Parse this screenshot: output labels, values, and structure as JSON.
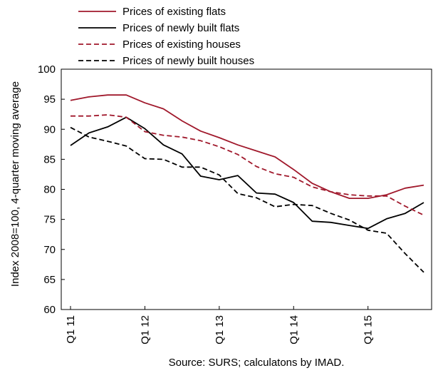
{
  "chart_data": {
    "type": "line",
    "title": "",
    "xlabel": "",
    "ylabel": "Index 2008=100, 4-quarter moving average",
    "ylim": [
      60,
      100
    ],
    "yticks": [
      60,
      65,
      70,
      75,
      80,
      85,
      90,
      95,
      100
    ],
    "grid": false,
    "legend_position": "top",
    "x_labels": [
      {
        "label": "Q1 11",
        "index": 0
      },
      {
        "label": "Q1 12",
        "index": 4
      },
      {
        "label": "Q1 13",
        "index": 8
      },
      {
        "label": "Q1 14",
        "index": 12
      },
      {
        "label": "Q1 15",
        "index": 16
      }
    ],
    "categories": [
      "Q1 11",
      "Q2 11",
      "Q3 11",
      "Q4 11",
      "Q1 12",
      "Q2 12",
      "Q3 12",
      "Q4 12",
      "Q1 13",
      "Q2 13",
      "Q3 13",
      "Q4 13",
      "Q1 14",
      "Q2 14",
      "Q3 14",
      "Q4 14",
      "Q1 15",
      "Q2 15",
      "Q3 15",
      "Q4 15"
    ],
    "series": [
      {
        "name": "Prices of existing flats",
        "color": "#a0182b",
        "dash": "solid",
        "values": [
          94.8,
          95.4,
          95.7,
          95.7,
          94.4,
          93.4,
          91.4,
          89.7,
          88.6,
          87.4,
          86.4,
          85.4,
          83.3,
          81.0,
          79.6,
          78.5,
          78.5,
          79.1,
          80.2,
          80.7
        ]
      },
      {
        "name": "Prices of newly built flats",
        "color": "#000000",
        "dash": "solid",
        "values": [
          87.3,
          89.4,
          90.4,
          92.0,
          90.1,
          87.4,
          85.9,
          82.2,
          81.6,
          82.3,
          79.4,
          79.2,
          77.8,
          74.7,
          74.5,
          74.0,
          73.5,
          75.1,
          76.0,
          77.8
        ]
      },
      {
        "name": "Prices of existing houses",
        "color": "#a0182b",
        "dash": "dashed",
        "values": [
          92.2,
          92.2,
          92.4,
          92.0,
          89.6,
          89.0,
          88.7,
          88.1,
          87.1,
          85.8,
          83.8,
          82.6,
          82.0,
          80.4,
          79.6,
          79.1,
          78.9,
          78.9,
          77.2,
          75.7
        ]
      },
      {
        "name": "Prices of newly built houses",
        "color": "#000000",
        "dash": "dashed",
        "values": [
          90.3,
          88.7,
          88.0,
          87.2,
          85.1,
          85.0,
          83.7,
          83.7,
          82.4,
          79.3,
          78.6,
          77.1,
          77.5,
          77.3,
          76.0,
          74.9,
          73.2,
          72.7,
          69.3,
          66.2
        ]
      }
    ]
  },
  "source_note": "Source: SURS; calculatons by IMAD."
}
